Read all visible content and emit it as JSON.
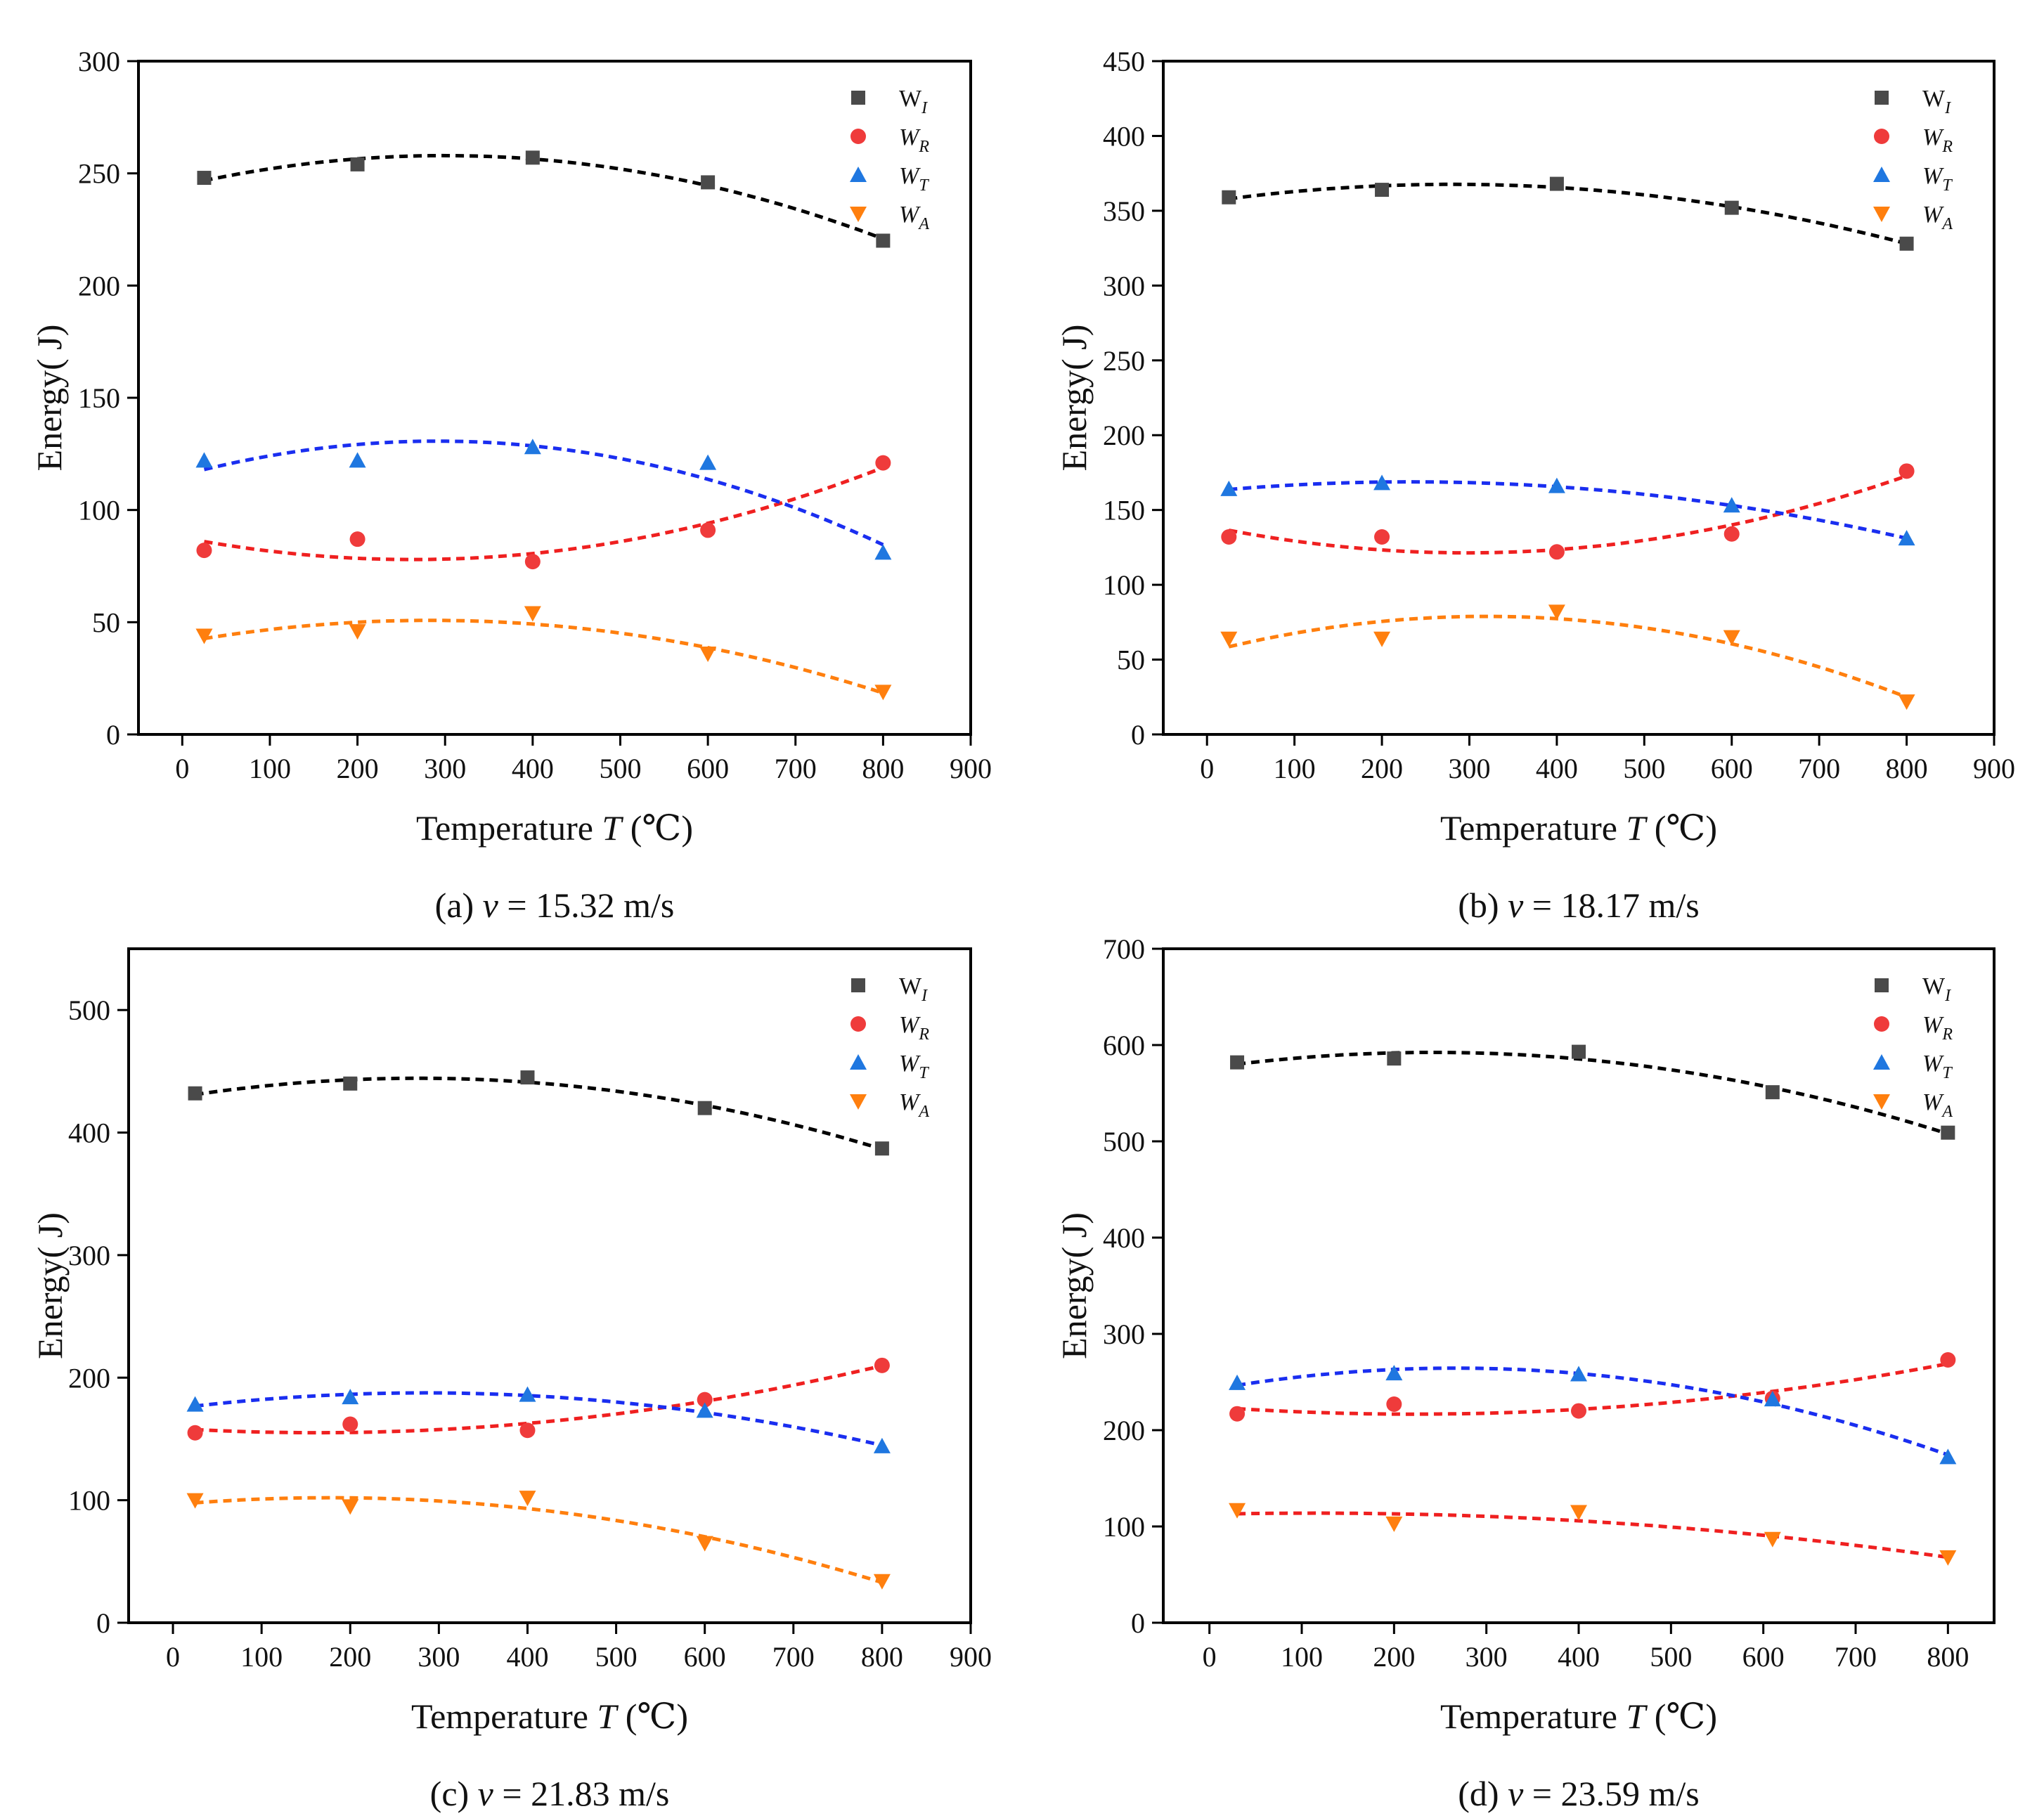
{
  "chart_data": [
    {
      "type": "scatter",
      "id": "a",
      "caption": {
        "prefix": "(a) ",
        "var": "v",
        "suffix": " = 15.32 m/s"
      },
      "xlabel": {
        "prefix": "Temperature ",
        "var": "T",
        "suffix": " (℃)"
      },
      "ylabel": "Energy(  J)",
      "xlim": [
        -50,
        900
      ],
      "ylim": [
        0,
        300
      ],
      "xticks": [
        0,
        100,
        200,
        300,
        400,
        500,
        600,
        700,
        800,
        900
      ],
      "yticks": [
        0,
        50,
        100,
        150,
        200,
        250,
        300
      ],
      "x": [
        25,
        200,
        400,
        600,
        800
      ],
      "series": [
        {
          "name": "W",
          "sub": "I",
          "italic": false,
          "marker": "square",
          "color": "#4a4a4a",
          "line_color": "#000000",
          "values": [
            248,
            254,
            257,
            246,
            220
          ]
        },
        {
          "name": "W",
          "sub": "R",
          "italic": true,
          "marker": "circle",
          "color": "#ef3b3b",
          "line_color": "#ef2020",
          "values": [
            82,
            87,
            77,
            91,
            121
          ]
        },
        {
          "name": "W",
          "sub": "T",
          "italic": true,
          "marker": "triangle-up",
          "color": "#1f77e0",
          "line_color": "#1a2ef0",
          "values": [
            122,
            122,
            128,
            121,
            81
          ]
        },
        {
          "name": "W",
          "sub": "A",
          "italic": true,
          "marker": "triangle-down",
          "color": "#ff7f0e",
          "line_color": "#ff7f0e",
          "values": [
            44,
            46,
            54,
            36,
            19
          ]
        }
      ],
      "legend": "top-right"
    },
    {
      "type": "scatter",
      "id": "b",
      "caption": {
        "prefix": "(b) ",
        "var": "v",
        "suffix": " = 18.17 m/s"
      },
      "xlabel": {
        "prefix": "Temperature ",
        "var": "T",
        "suffix": " (℃)"
      },
      "ylabel": "Energy(  J)",
      "xlim": [
        -50,
        900
      ],
      "ylim": [
        0,
        450
      ],
      "xticks": [
        0,
        100,
        200,
        300,
        400,
        500,
        600,
        700,
        800,
        900
      ],
      "yticks": [
        0,
        50,
        100,
        150,
        200,
        250,
        300,
        350,
        400,
        450
      ],
      "x": [
        25,
        200,
        400,
        600,
        800
      ],
      "series": [
        {
          "name": "W",
          "sub": "I",
          "italic": false,
          "marker": "square",
          "color": "#4a4a4a",
          "line_color": "#000000",
          "values": [
            359,
            364,
            368,
            352,
            328
          ]
        },
        {
          "name": "W",
          "sub": "R",
          "italic": true,
          "marker": "circle",
          "color": "#ef3b3b",
          "line_color": "#ef2020",
          "values": [
            132,
            132,
            122,
            134,
            176
          ]
        },
        {
          "name": "W",
          "sub": "T",
          "italic": true,
          "marker": "triangle-up",
          "color": "#1f77e0",
          "line_color": "#1a2ef0",
          "values": [
            164,
            168,
            166,
            153,
            131
          ]
        },
        {
          "name": "W",
          "sub": "A",
          "italic": true,
          "marker": "triangle-down",
          "color": "#ff7f0e",
          "line_color": "#ff7f0e",
          "values": [
            64,
            64,
            82,
            65,
            22
          ]
        }
      ],
      "legend": "top-right"
    },
    {
      "type": "scatter",
      "id": "c",
      "caption": {
        "prefix": "(c) ",
        "var": "v",
        "suffix": " = 21.83 m/s"
      },
      "xlabel": {
        "prefix": "Temperature ",
        "var": "T",
        "suffix": " (℃)"
      },
      "ylabel": "Energy(  J)",
      "xlim": [
        -50,
        900
      ],
      "ylim": [
        0,
        550
      ],
      "xticks": [
        0,
        100,
        200,
        300,
        400,
        500,
        600,
        700,
        800,
        900
      ],
      "yticks": [
        0,
        100,
        200,
        300,
        400,
        500
      ],
      "x": [
        25,
        200,
        400,
        600,
        800
      ],
      "series": [
        {
          "name": "W",
          "sub": "I",
          "italic": false,
          "marker": "square",
          "color": "#4a4a4a",
          "line_color": "#000000",
          "values": [
            432,
            440,
            445,
            420,
            387
          ]
        },
        {
          "name": "W",
          "sub": "R",
          "italic": true,
          "marker": "circle",
          "color": "#ef3b3b",
          "line_color": "#ef2020",
          "values": [
            155,
            162,
            157,
            182,
            210
          ]
        },
        {
          "name": "W",
          "sub": "T",
          "italic": true,
          "marker": "triangle-up",
          "color": "#1f77e0",
          "line_color": "#1a2ef0",
          "values": [
            178,
            184,
            186,
            173,
            144
          ]
        },
        {
          "name": "W",
          "sub": "A",
          "italic": true,
          "marker": "triangle-down",
          "color": "#ff7f0e",
          "line_color": "#ff7f0e",
          "values": [
            100,
            95,
            102,
            65,
            34
          ]
        }
      ],
      "legend": "top-right"
    },
    {
      "type": "scatter",
      "id": "d",
      "caption": {
        "prefix": "(d) ",
        "var": "v",
        "suffix": " = 23.59 m/s"
      },
      "xlabel": {
        "prefix": "Temperature ",
        "var": "T",
        "suffix": " (℃)"
      },
      "ylabel": "Energy(  J)",
      "xlim": [
        -50,
        850
      ],
      "ylim": [
        0,
        700
      ],
      "xticks": [
        0,
        100,
        200,
        300,
        400,
        500,
        600,
        700,
        800
      ],
      "yticks": [
        0,
        100,
        200,
        300,
        400,
        500,
        600,
        700
      ],
      "x": [
        30,
        200,
        400,
        610,
        800
      ],
      "series": [
        {
          "name": "W",
          "sub": "I",
          "italic": false,
          "marker": "square",
          "color": "#4a4a4a",
          "line_color": "#000000",
          "values": [
            582,
            586,
            593,
            551,
            509
          ]
        },
        {
          "name": "W",
          "sub": "R",
          "italic": true,
          "marker": "circle",
          "color": "#ef3b3b",
          "line_color": "#ef2020",
          "values": [
            217,
            227,
            220,
            233,
            273
          ]
        },
        {
          "name": "W",
          "sub": "T",
          "italic": true,
          "marker": "triangle-up",
          "color": "#1f77e0",
          "line_color": "#1a2ef0",
          "values": [
            249,
            259,
            258,
            232,
            172
          ]
        },
        {
          "name": "W",
          "sub": "A",
          "italic": true,
          "marker": "triangle-down",
          "color": "#ff7f0e",
          "line_color": "#ef2020",
          "values": [
            117,
            103,
            115,
            87,
            68
          ]
        }
      ],
      "legend": "top-right"
    }
  ]
}
